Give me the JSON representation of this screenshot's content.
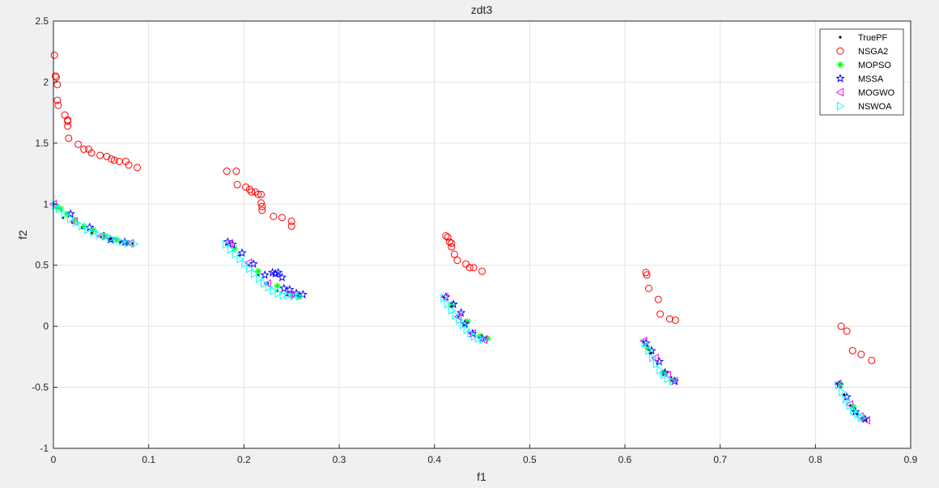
{
  "chart_data": {
    "type": "scatter",
    "title": "zdt3",
    "xlabel": "f1",
    "ylabel": "f2",
    "xlim": [
      0,
      0.9
    ],
    "ylim": [
      -1,
      2.5
    ],
    "xticks": [
      "0",
      "0.1",
      "0.2",
      "0.3",
      "0.4",
      "0.5",
      "0.6",
      "0.7",
      "0.8",
      "0.9"
    ],
    "yticks": [
      "-1",
      "-0.5",
      "0",
      "0.5",
      "1",
      "1.5",
      "2",
      "2.5"
    ],
    "grid": true,
    "legend_position": "top-right",
    "series": [
      {
        "name": "TruePF",
        "marker": "dot",
        "color": "#000000",
        "points": [
          [
            0.0,
            1.0
          ],
          [
            0.01,
            0.89
          ],
          [
            0.02,
            0.85
          ],
          [
            0.03,
            0.805
          ],
          [
            0.04,
            0.765
          ],
          [
            0.05,
            0.735
          ],
          [
            0.06,
            0.712
          ],
          [
            0.07,
            0.688
          ],
          [
            0.083,
            0.677
          ],
          [
            0.183,
            0.67
          ],
          [
            0.195,
            0.58
          ],
          [
            0.205,
            0.5
          ],
          [
            0.215,
            0.42
          ],
          [
            0.225,
            0.35
          ],
          [
            0.235,
            0.29
          ],
          [
            0.245,
            0.255
          ],
          [
            0.257,
            0.245
          ],
          [
            0.41,
            0.24
          ],
          [
            0.418,
            0.16
          ],
          [
            0.425,
            0.08
          ],
          [
            0.432,
            0.01
          ],
          [
            0.44,
            -0.05
          ],
          [
            0.447,
            -0.09
          ],
          [
            0.454,
            -0.104
          ],
          [
            0.619,
            -0.12
          ],
          [
            0.627,
            -0.22
          ],
          [
            0.634,
            -0.3
          ],
          [
            0.641,
            -0.37
          ],
          [
            0.648,
            -0.42
          ],
          [
            0.652,
            -0.45
          ],
          [
            0.823,
            -0.47
          ],
          [
            0.83,
            -0.56
          ],
          [
            0.837,
            -0.65
          ],
          [
            0.844,
            -0.72
          ],
          [
            0.852,
            -0.77
          ]
        ]
      },
      {
        "name": "NSGA2",
        "marker": "circle",
        "color": "#ff0000",
        "points": [
          [
            0.001,
            2.22
          ],
          [
            0.002,
            2.05
          ],
          [
            0.003,
            2.04
          ],
          [
            0.004,
            1.98
          ],
          [
            0.004,
            1.85
          ],
          [
            0.005,
            1.81
          ],
          [
            0.012,
            1.73
          ],
          [
            0.015,
            1.69
          ],
          [
            0.015,
            1.68
          ],
          [
            0.015,
            1.64
          ],
          [
            0.016,
            1.54
          ],
          [
            0.026,
            1.49
          ],
          [
            0.032,
            1.45
          ],
          [
            0.037,
            1.45
          ],
          [
            0.04,
            1.42
          ],
          [
            0.049,
            1.4
          ],
          [
            0.056,
            1.39
          ],
          [
            0.061,
            1.37
          ],
          [
            0.064,
            1.36
          ],
          [
            0.069,
            1.35
          ],
          [
            0.076,
            1.35
          ],
          [
            0.079,
            1.32
          ],
          [
            0.088,
            1.3
          ],
          [
            0.182,
            1.27
          ],
          [
            0.192,
            1.27
          ],
          [
            0.193,
            1.16
          ],
          [
            0.202,
            1.14
          ],
          [
            0.206,
            1.12
          ],
          [
            0.208,
            1.1
          ],
          [
            0.212,
            1.1
          ],
          [
            0.215,
            1.08
          ],
          [
            0.218,
            1.08
          ],
          [
            0.218,
            1.01
          ],
          [
            0.219,
            0.98
          ],
          [
            0.219,
            0.95
          ],
          [
            0.231,
            0.9
          ],
          [
            0.24,
            0.89
          ],
          [
            0.25,
            0.86
          ],
          [
            0.25,
            0.82
          ],
          [
            0.412,
            0.74
          ],
          [
            0.414,
            0.73
          ],
          [
            0.416,
            0.69
          ],
          [
            0.418,
            0.68
          ],
          [
            0.418,
            0.65
          ],
          [
            0.421,
            0.59
          ],
          [
            0.424,
            0.54
          ],
          [
            0.433,
            0.51
          ],
          [
            0.437,
            0.48
          ],
          [
            0.441,
            0.48
          ],
          [
            0.45,
            0.45
          ],
          [
            0.622,
            0.44
          ],
          [
            0.623,
            0.42
          ],
          [
            0.625,
            0.31
          ],
          [
            0.635,
            0.22
          ],
          [
            0.637,
            0.1
          ],
          [
            0.647,
            0.06
          ],
          [
            0.653,
            0.05
          ],
          [
            0.827,
            0.0
          ],
          [
            0.833,
            -0.04
          ],
          [
            0.839,
            -0.2
          ],
          [
            0.848,
            -0.23
          ],
          [
            0.859,
            -0.28
          ]
        ]
      },
      {
        "name": "MOPSO",
        "marker": "asterisk",
        "color": "#00ff00",
        "points": [
          [
            0.004,
            0.98
          ],
          [
            0.008,
            0.96
          ],
          [
            0.014,
            0.92
          ],
          [
            0.022,
            0.87
          ],
          [
            0.032,
            0.82
          ],
          [
            0.042,
            0.79
          ],
          [
            0.054,
            0.74
          ],
          [
            0.066,
            0.71
          ],
          [
            0.078,
            0.68
          ],
          [
            0.19,
            0.64
          ],
          [
            0.215,
            0.45
          ],
          [
            0.235,
            0.33
          ],
          [
            0.25,
            0.26
          ],
          [
            0.258,
            0.24
          ],
          [
            0.418,
            0.18
          ],
          [
            0.435,
            0.04
          ],
          [
            0.448,
            -0.08
          ],
          [
            0.456,
            -0.1
          ],
          [
            0.624,
            -0.18
          ],
          [
            0.64,
            -0.38
          ],
          [
            0.65,
            -0.44
          ],
          [
            0.826,
            -0.48
          ],
          [
            0.84,
            -0.66
          ],
          [
            0.85,
            -0.76
          ]
        ]
      },
      {
        "name": "MSSA",
        "marker": "star",
        "color": "#0000ff",
        "points": [
          [
            0.018,
            0.92
          ],
          [
            0.038,
            0.81
          ],
          [
            0.06,
            0.71
          ],
          [
            0.075,
            0.69
          ],
          [
            0.183,
            0.69
          ],
          [
            0.188,
            0.67
          ],
          [
            0.198,
            0.6
          ],
          [
            0.21,
            0.51
          ],
          [
            0.222,
            0.42
          ],
          [
            0.23,
            0.44
          ],
          [
            0.233,
            0.43
          ],
          [
            0.236,
            0.44
          ],
          [
            0.24,
            0.4
          ],
          [
            0.242,
            0.31
          ],
          [
            0.248,
            0.3
          ],
          [
            0.255,
            0.27
          ],
          [
            0.262,
            0.26
          ],
          [
            0.412,
            0.24
          ],
          [
            0.42,
            0.18
          ],
          [
            0.428,
            0.11
          ],
          [
            0.432,
            0.02
          ],
          [
            0.44,
            -0.06
          ],
          [
            0.45,
            -0.1
          ],
          [
            0.622,
            -0.14
          ],
          [
            0.628,
            -0.2
          ],
          [
            0.636,
            -0.29
          ],
          [
            0.642,
            -0.38
          ],
          [
            0.652,
            -0.45
          ],
          [
            0.825,
            -0.48
          ],
          [
            0.833,
            -0.58
          ],
          [
            0.842,
            -0.7
          ],
          [
            0.852,
            -0.76
          ]
        ]
      },
      {
        "name": "MOGWO",
        "marker": "triangle-left",
        "color": "#ff00ff",
        "points": [
          [
            0.0,
            1.0
          ],
          [
            0.022,
            0.86
          ],
          [
            0.05,
            0.74
          ],
          [
            0.081,
            0.68
          ],
          [
            0.185,
            0.68
          ],
          [
            0.205,
            0.52
          ],
          [
            0.225,
            0.35
          ],
          [
            0.248,
            0.26
          ],
          [
            0.411,
            0.24
          ],
          [
            0.425,
            0.08
          ],
          [
            0.44,
            -0.06
          ],
          [
            0.452,
            -0.11
          ],
          [
            0.62,
            -0.12
          ],
          [
            0.632,
            -0.26
          ],
          [
            0.645,
            -0.4
          ],
          [
            0.652,
            -0.45
          ],
          [
            0.824,
            -0.47
          ],
          [
            0.836,
            -0.64
          ],
          [
            0.847,
            -0.74
          ],
          [
            0.854,
            -0.77
          ]
        ]
      },
      {
        "name": "NSWOA",
        "marker": "triangle-right",
        "color": "#00ffff",
        "points": [
          [
            0.002,
            0.99
          ],
          [
            0.006,
            0.96
          ],
          [
            0.012,
            0.92
          ],
          [
            0.018,
            0.88
          ],
          [
            0.024,
            0.85
          ],
          [
            0.03,
            0.82
          ],
          [
            0.036,
            0.79
          ],
          [
            0.042,
            0.77
          ],
          [
            0.048,
            0.75
          ],
          [
            0.054,
            0.735
          ],
          [
            0.06,
            0.72
          ],
          [
            0.066,
            0.705
          ],
          [
            0.072,
            0.69
          ],
          [
            0.078,
            0.68
          ],
          [
            0.085,
            0.675
          ],
          [
            0.181,
            0.67
          ],
          [
            0.186,
            0.63
          ],
          [
            0.191,
            0.59
          ],
          [
            0.196,
            0.55
          ],
          [
            0.201,
            0.51
          ],
          [
            0.206,
            0.47
          ],
          [
            0.211,
            0.43
          ],
          [
            0.216,
            0.39
          ],
          [
            0.221,
            0.35
          ],
          [
            0.226,
            0.32
          ],
          [
            0.231,
            0.29
          ],
          [
            0.236,
            0.27
          ],
          [
            0.241,
            0.255
          ],
          [
            0.246,
            0.25
          ],
          [
            0.252,
            0.245
          ],
          [
            0.258,
            0.245
          ],
          [
            0.41,
            0.23
          ],
          [
            0.414,
            0.18
          ],
          [
            0.418,
            0.13
          ],
          [
            0.422,
            0.09
          ],
          [
            0.426,
            0.05
          ],
          [
            0.43,
            0.01
          ],
          [
            0.434,
            -0.03
          ],
          [
            0.438,
            -0.06
          ],
          [
            0.442,
            -0.085
          ],
          [
            0.446,
            -0.1
          ],
          [
            0.451,
            -0.11
          ],
          [
            0.621,
            -0.14
          ],
          [
            0.625,
            -0.2
          ],
          [
            0.629,
            -0.26
          ],
          [
            0.633,
            -0.31
          ],
          [
            0.637,
            -0.36
          ],
          [
            0.641,
            -0.4
          ],
          [
            0.645,
            -0.43
          ],
          [
            0.65,
            -0.45
          ],
          [
            0.824,
            -0.48
          ],
          [
            0.828,
            -0.54
          ],
          [
            0.832,
            -0.6
          ],
          [
            0.836,
            -0.65
          ],
          [
            0.84,
            -0.69
          ],
          [
            0.844,
            -0.72
          ],
          [
            0.848,
            -0.75
          ]
        ]
      }
    ]
  }
}
